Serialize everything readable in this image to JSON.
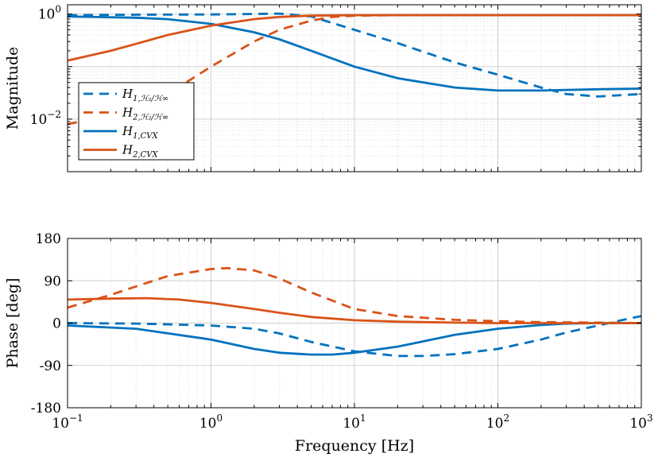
{
  "colors": {
    "blue": "#0072BD",
    "orange": "#D95319",
    "grid": "#d9d9d9",
    "axis": "#000000"
  },
  "chart_data": [
    {
      "type": "line",
      "xscale": "log",
      "yscale": "log",
      "xlim": [
        0.1,
        1000
      ],
      "ylim": [
        0.001,
        1.5
      ],
      "ylabel": "Magnitude",
      "grid": true,
      "legend_position": "bottom-left",
      "ytick_labels": [
        {
          "value": 1,
          "base": "10",
          "exp": "0"
        },
        {
          "value": 0.01,
          "base": "10",
          "exp": "−2"
        }
      ],
      "series": [
        {
          "name": "H1,H2/H∞",
          "legend_base": "H",
          "legend_sub": "1,ℋ₂/ℋ∞",
          "color": "blue",
          "dash": true,
          "x": [
            0.1,
            0.3,
            1,
            2,
            3,
            5,
            10,
            20,
            50,
            100,
            200,
            300,
            500,
            1000
          ],
          "y": [
            0.95,
            0.97,
            0.98,
            1.0,
            1.02,
            0.9,
            0.5,
            0.28,
            0.12,
            0.07,
            0.04,
            0.03,
            0.027,
            0.03
          ]
        },
        {
          "name": "H2,H2/H∞",
          "legend_base": "H",
          "legend_sub": "2,ℋ₂/ℋ∞",
          "color": "orange",
          "dash": true,
          "x": [
            0.1,
            0.2,
            0.5,
            1,
            2,
            3,
            5,
            7,
            10,
            20,
            100,
            1000
          ],
          "y": [
            0.008,
            0.012,
            0.03,
            0.1,
            0.3,
            0.5,
            0.75,
            0.88,
            0.93,
            0.95,
            0.95,
            0.95
          ]
        },
        {
          "name": "H1,CVX",
          "legend_base": "H",
          "legend_sub": "1,CVX",
          "color": "blue",
          "dash": false,
          "x": [
            0.1,
            0.3,
            0.5,
            1,
            2,
            3,
            5,
            10,
            20,
            50,
            100,
            200,
            500,
            1000
          ],
          "y": [
            0.9,
            0.85,
            0.8,
            0.65,
            0.45,
            0.33,
            0.2,
            0.1,
            0.06,
            0.04,
            0.035,
            0.035,
            0.037,
            0.038
          ]
        },
        {
          "name": "H2,CVX",
          "legend_base": "H",
          "legend_sub": "2,CVX",
          "color": "orange",
          "dash": false,
          "x": [
            0.1,
            0.2,
            0.3,
            0.5,
            1,
            2,
            3,
            5,
            10,
            20,
            100,
            1000
          ],
          "y": [
            0.13,
            0.2,
            0.27,
            0.4,
            0.6,
            0.8,
            0.88,
            0.93,
            0.95,
            0.95,
            0.95,
            0.95
          ]
        }
      ]
    },
    {
      "type": "line",
      "xscale": "log",
      "xlim": [
        0.1,
        1000
      ],
      "ylim": [
        -180,
        180
      ],
      "xlabel": "Frequency [Hz]",
      "ylabel": "Phase [deg]",
      "grid": true,
      "yticks": [
        -180,
        -90,
        0,
        90,
        180
      ],
      "ytick_labels": [
        "-180",
        "-90",
        "0",
        "90",
        "180"
      ],
      "xtick_labels": [
        {
          "value": 0.1,
          "base": "10",
          "exp": "−1"
        },
        {
          "value": 1,
          "base": "10",
          "exp": "0"
        },
        {
          "value": 10,
          "base": "10",
          "exp": "1"
        },
        {
          "value": 100,
          "base": "10",
          "exp": "2"
        },
        {
          "value": 1000,
          "base": "10",
          "exp": "3"
        }
      ],
      "series": [
        {
          "name": "H1,H2/H∞",
          "color": "blue",
          "dash": true,
          "x": [
            0.1,
            0.3,
            1,
            2,
            3,
            5,
            10,
            20,
            30,
            50,
            100,
            200,
            300,
            500,
            700,
            1000
          ],
          "y": [
            0,
            -1,
            -5,
            -12,
            -22,
            -40,
            -60,
            -70,
            -70,
            -66,
            -55,
            -35,
            -20,
            -5,
            5,
            15
          ]
        },
        {
          "name": "H2,H2/H∞",
          "color": "orange",
          "dash": true,
          "x": [
            0.1,
            0.2,
            0.3,
            0.5,
            1,
            1.3,
            2,
            3,
            5,
            10,
            20,
            50,
            100,
            200,
            500,
            1000
          ],
          "y": [
            33,
            60,
            78,
            100,
            115,
            117,
            112,
            95,
            65,
            30,
            15,
            7,
            4,
            2,
            1,
            0
          ]
        },
        {
          "name": "H1,CVX",
          "color": "blue",
          "dash": false,
          "x": [
            0.1,
            0.3,
            1,
            2,
            3,
            5,
            7,
            10,
            20,
            50,
            100,
            200,
            300,
            500,
            1000
          ],
          "y": [
            -5,
            -12,
            -35,
            -55,
            -63,
            -67,
            -67,
            -63,
            -50,
            -25,
            -12,
            -4,
            -1,
            0,
            0
          ]
        },
        {
          "name": "H2,CVX",
          "color": "orange",
          "dash": false,
          "x": [
            0.1,
            0.2,
            0.35,
            0.6,
            1,
            2,
            3,
            5,
            10,
            20,
            50,
            100,
            1000
          ],
          "y": [
            50,
            52,
            53,
            50,
            43,
            30,
            22,
            13,
            6,
            3,
            1,
            0,
            0
          ]
        }
      ]
    }
  ]
}
